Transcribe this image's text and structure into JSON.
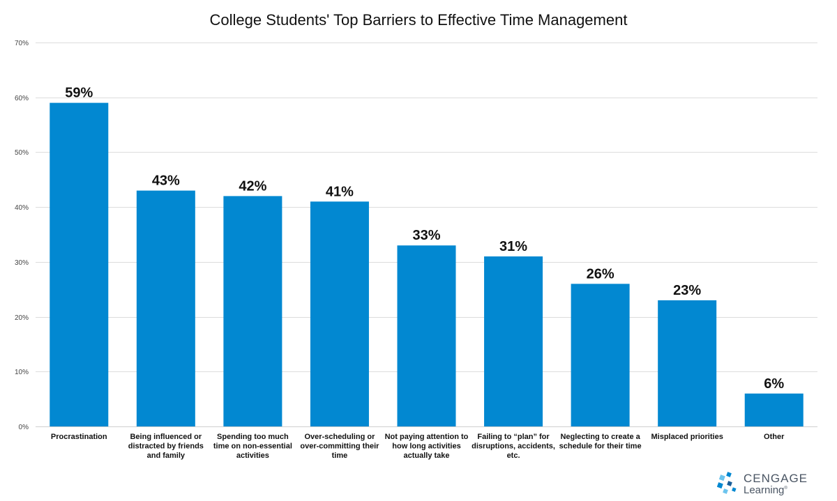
{
  "chart_data": {
    "type": "bar",
    "title": "College Students' Top Barriers to Effective Time Management",
    "categories": [
      [
        "Procrastination"
      ],
      [
        "Being influenced or",
        "distracted by friends",
        "and family"
      ],
      [
        "Spending too much",
        "time on non-essential",
        "activities"
      ],
      [
        "Over-scheduling or",
        "over-committing their",
        "time"
      ],
      [
        "Not paying attention to",
        "how long activities",
        "actually take"
      ],
      [
        "Failing to “plan” for",
        "disruptions, accidents,",
        "etc."
      ],
      [
        "Neglecting to create a",
        "schedule for their time"
      ],
      [
        "Misplaced priorities"
      ],
      [
        "Other"
      ]
    ],
    "values": [
      59,
      43,
      42,
      41,
      33,
      31,
      26,
      23,
      6
    ],
    "data_labels": [
      "59%",
      "43%",
      "42%",
      "41%",
      "33%",
      "31%",
      "26%",
      "23%",
      "6%"
    ],
    "ylim": [
      0,
      70
    ],
    "yticks": [
      0,
      10,
      20,
      30,
      40,
      50,
      60,
      70
    ],
    "ytick_labels": [
      "0%",
      "10%",
      "20%",
      "30%",
      "40%",
      "50%",
      "60%",
      "70%"
    ],
    "xlabel": "",
    "ylabel": "",
    "grid": true,
    "bar_color": "#0288d1"
  },
  "logo": {
    "word": "CENGAGE",
    "sub": "Learning",
    "colors": [
      "#0288d1",
      "#6cc4ee",
      "#1a5f9a"
    ]
  }
}
